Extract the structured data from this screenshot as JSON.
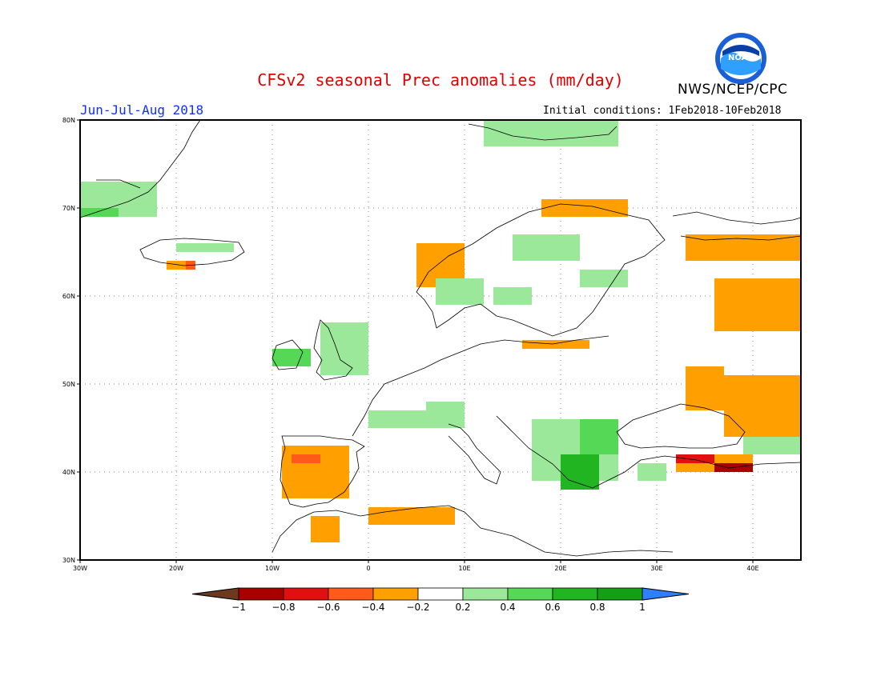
{
  "title": "CFSv2 seasonal Prec anomalies (mm/day)",
  "agency": "NWS/NCEP/CPC",
  "logo_text": "NOAA",
  "period": "Jun-Jul-Aug 2018",
  "initial_conditions": "Initial conditions: 1Feb2018-10Feb2018",
  "map": {
    "lon_range": [
      -30,
      45
    ],
    "lat_range": [
      30,
      80
    ],
    "lon_ticks": [
      {
        "value": -30,
        "label": "30W"
      },
      {
        "value": -20,
        "label": "20W"
      },
      {
        "value": -10,
        "label": "10W"
      },
      {
        "value": 0,
        "label": "0"
      },
      {
        "value": 10,
        "label": "10E"
      },
      {
        "value": 20,
        "label": "20E"
      },
      {
        "value": 30,
        "label": "30E"
      },
      {
        "value": 40,
        "label": "40E"
      }
    ],
    "lat_ticks": [
      {
        "value": 30,
        "label": "30N"
      },
      {
        "value": 40,
        "label": "40N"
      },
      {
        "value": 50,
        "label": "50N"
      },
      {
        "value": 60,
        "label": "60N"
      },
      {
        "value": 70,
        "label": "70N"
      },
      {
        "value": 80,
        "label": "80N"
      }
    ],
    "grid": true
  },
  "colorbar": {
    "labels": [
      "-1",
      "-0.8",
      "-0.6",
      "-0.4",
      "-0.2",
      "0.2",
      "0.4",
      "0.6",
      "0.8",
      "1"
    ],
    "colors": [
      "#6b3a1e",
      "#a80000",
      "#e01010",
      "#ff5a1a",
      "#ff9f00",
      "#ffffff",
      "#9be89b",
      "#55d855",
      "#22b522",
      "#14a014",
      "#2f7fff"
    ]
  },
  "legend_colors": {
    "dry_-0.4": "#ff9f00",
    "dry_-0.6": "#ff5a1a",
    "dry_-0.8": "#e01010",
    "dry_-1": "#a80000",
    "wet_0.2": "#9be89b",
    "wet_0.4": "#55d855",
    "wet_0.6": "#22b522"
  },
  "anomaly_regions": [
    {
      "name": "Greenland coast",
      "lon": [
        -30,
        -22
      ],
      "lat": [
        69,
        73
      ],
      "value": 0.3
    },
    {
      "name": "East Greenland",
      "lon": [
        -30,
        -26
      ],
      "lat": [
        69,
        70
      ],
      "value": 0.5
    },
    {
      "name": "Svalbard",
      "lon": [
        12,
        26
      ],
      "lat": [
        77,
        80
      ],
      "value": 0.3
    },
    {
      "name": "Iceland north",
      "lon": [
        -20,
        -14
      ],
      "lat": [
        65,
        66
      ],
      "value": 0.3
    },
    {
      "name": "Iceland south",
      "lon": [
        -21,
        -18
      ],
      "lat": [
        63,
        64
      ],
      "value": -0.3
    },
    {
      "name": "Iceland south dark",
      "lon": [
        -19,
        -18
      ],
      "lat": [
        63,
        64
      ],
      "value": -0.5
    },
    {
      "name": "Norway coast",
      "lon": [
        5,
        10
      ],
      "lat": [
        61,
        66
      ],
      "value": -0.3
    },
    {
      "name": "North Norway",
      "lon": [
        18,
        27
      ],
      "lat": [
        69,
        71
      ],
      "value": -0.3
    },
    {
      "name": "Scandinavia",
      "lon": [
        7,
        12
      ],
      "lat": [
        59,
        62
      ],
      "value": 0.3
    },
    {
      "name": "Sweden north",
      "lon": [
        15,
        22
      ],
      "lat": [
        64,
        67
      ],
      "value": 0.3
    },
    {
      "name": "Finland",
      "lon": [
        22,
        27
      ],
      "lat": [
        61,
        63
      ],
      "value": 0.3
    },
    {
      "name": "Sweden mid",
      "lon": [
        13,
        17
      ],
      "lat": [
        59,
        61
      ],
      "value": 0.3
    },
    {
      "name": "Ireland",
      "lon": [
        -10,
        -6
      ],
      "lat": [
        52,
        54
      ],
      "value": 0.4
    },
    {
      "name": "Britain",
      "lon": [
        -5,
        0
      ],
      "lat": [
        51,
        57
      ],
      "value": 0.3
    },
    {
      "name": "Baltic",
      "lon": [
        16,
        23
      ],
      "lat": [
        54,
        55
      ],
      "value": -0.3
    },
    {
      "name": "France",
      "lon": [
        0,
        6
      ],
      "lat": [
        45,
        47
      ],
      "value": 0.3
    },
    {
      "name": "Alps",
      "lon": [
        6,
        10
      ],
      "lat": [
        45,
        48
      ],
      "value": 0.3
    },
    {
      "name": "Balkans",
      "lon": [
        17,
        26
      ],
      "lat": [
        39,
        46
      ],
      "value": 0.3
    },
    {
      "name": "Greece",
      "lon": [
        20,
        24
      ],
      "lat": [
        38,
        42
      ],
      "value": 0.6
    },
    {
      "name": "Bulgaria",
      "lon": [
        22,
        26
      ],
      "lat": [
        42,
        46
      ],
      "value": 0.4
    },
    {
      "name": "Iberia",
      "lon": [
        -9,
        -2
      ],
      "lat": [
        37,
        43
      ],
      "value": -0.3
    },
    {
      "name": "Iberia dark",
      "lon": [
        -8,
        -5
      ],
      "lat": [
        41,
        42
      ],
      "value": -0.5
    },
    {
      "name": "North Africa",
      "lon": [
        0,
        9
      ],
      "lat": [
        34,
        36
      ],
      "value": -0.3
    },
    {
      "name": "Morocco",
      "lon": [
        -6,
        -3
      ],
      "lat": [
        32,
        35
      ],
      "value": -0.3
    },
    {
      "name": "Russia north",
      "lon": [
        33,
        45
      ],
      "lat": [
        64,
        67
      ],
      "value": -0.3
    },
    {
      "name": "Russia mid",
      "lon": [
        36,
        45
      ],
      "lat": [
        56,
        62
      ],
      "value": -0.3
    },
    {
      "name": "Caspian",
      "lon": [
        37,
        45
      ],
      "lat": [
        44,
        51
      ],
      "value": -0.3
    },
    {
      "name": "Ukraine east",
      "lon": [
        33,
        37
      ],
      "lat": [
        47,
        52
      ],
      "value": -0.3
    },
    {
      "name": "Turkey east",
      "lon": [
        32,
        40
      ],
      "lat": [
        40,
        42
      ],
      "value": -0.3
    },
    {
      "name": "Turkey red",
      "lon": [
        32,
        36
      ],
      "lat": [
        41,
        42
      ],
      "value": -0.6
    },
    {
      "name": "Turkey dark red",
      "lon": [
        36,
        40
      ],
      "lat": [
        40,
        41
      ],
      "value": -0.8
    },
    {
      "name": "Georgia",
      "lon": [
        39,
        45
      ],
      "lat": [
        42,
        44
      ],
      "value": 0.3
    },
    {
      "name": "Anatolia west",
      "lon": [
        28,
        31
      ],
      "lat": [
        39,
        41
      ],
      "value": 0.3
    }
  ]
}
